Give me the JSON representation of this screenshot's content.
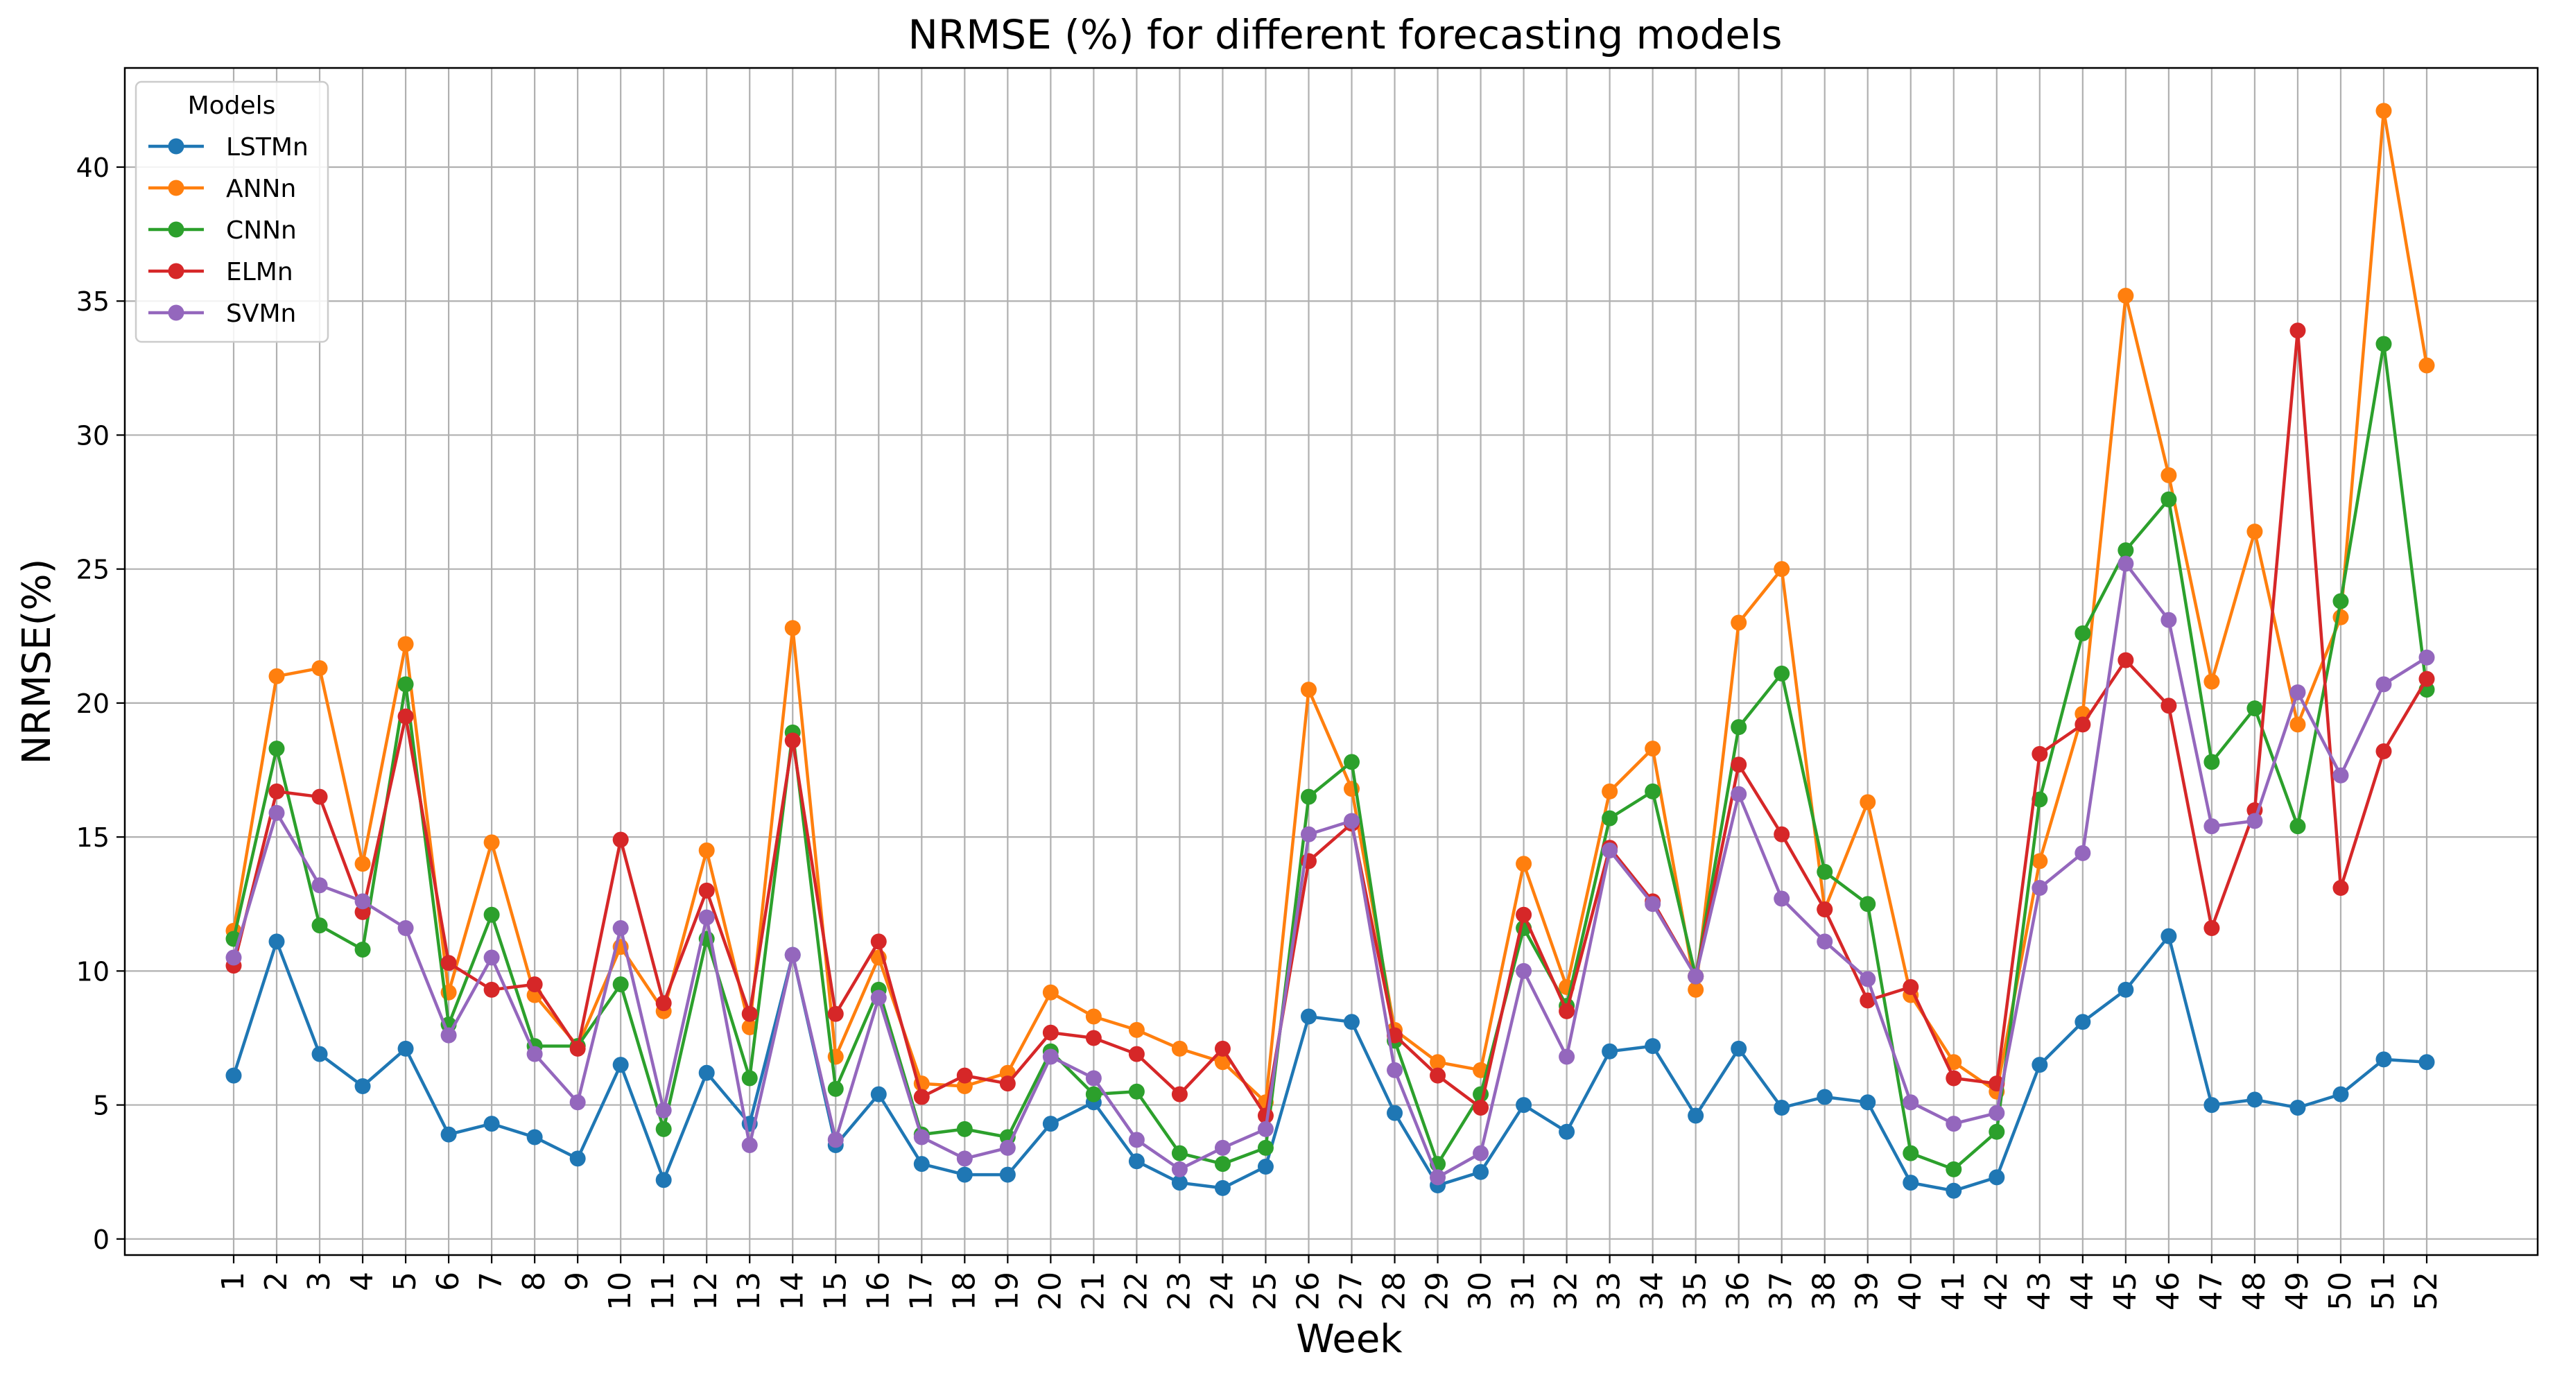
{
  "chart_data": {
    "type": "line",
    "title": "NRMSE (%) for different forecasting models",
    "xlabel": "Week",
    "ylabel": "NRMSE(%)",
    "ylim": [
      -0.6,
      43.7
    ],
    "yticks": [
      0,
      5,
      10,
      15,
      20,
      25,
      30,
      35,
      40
    ],
    "grid": true,
    "legend": {
      "title": "Models",
      "placement": "top-left"
    },
    "categories": [
      "1",
      "2",
      "3",
      "4",
      "5",
      "6",
      "7",
      "8",
      "9",
      "10",
      "11",
      "12",
      "13",
      "14",
      "15",
      "16",
      "17",
      "18",
      "19",
      "20",
      "21",
      "22",
      "23",
      "24",
      "25",
      "26",
      "27",
      "28",
      "29",
      "30",
      "31",
      "32",
      "33",
      "34",
      "35",
      "36",
      "37",
      "38",
      "39",
      "40",
      "41",
      "42",
      "43",
      "44",
      "45",
      "46",
      "47",
      "48",
      "49",
      "50",
      "51",
      "52"
    ],
    "series": [
      {
        "name": "LSTMn",
        "color": "#1f77b4",
        "values": [
          6.1,
          11.1,
          6.9,
          5.7,
          7.1,
          3.9,
          4.3,
          3.8,
          3.0,
          6.5,
          2.2,
          6.2,
          4.3,
          10.6,
          3.5,
          5.4,
          2.8,
          2.4,
          2.4,
          4.3,
          5.1,
          2.9,
          2.1,
          1.9,
          2.7,
          8.3,
          8.1,
          4.7,
          2.0,
          2.5,
          5.0,
          4.0,
          7.0,
          7.2,
          4.6,
          7.1,
          4.9,
          5.3,
          5.1,
          2.1,
          1.8,
          2.3,
          6.5,
          8.1,
          9.3,
          11.3,
          5.0,
          5.2,
          4.9,
          5.4,
          6.7,
          6.6
        ]
      },
      {
        "name": "ANNn",
        "color": "#ff7f0e",
        "values": [
          11.5,
          21.0,
          21.3,
          14.0,
          22.2,
          9.2,
          14.8,
          9.1,
          7.2,
          10.9,
          8.5,
          14.5,
          7.9,
          22.8,
          6.8,
          10.5,
          5.8,
          5.7,
          6.2,
          9.2,
          8.3,
          7.8,
          7.1,
          6.6,
          5.1,
          20.5,
          16.8,
          7.8,
          6.6,
          6.3,
          14.0,
          9.4,
          16.7,
          18.3,
          9.3,
          23.0,
          25.0,
          12.3,
          16.3,
          9.1,
          6.6,
          5.5,
          14.1,
          19.6,
          35.2,
          28.5,
          20.8,
          26.4,
          19.2,
          23.2,
          42.1,
          32.6
        ]
      },
      {
        "name": "CNNn",
        "color": "#2ca02c",
        "values": [
          11.2,
          18.3,
          11.7,
          10.8,
          20.7,
          8.0,
          12.1,
          7.2,
          7.2,
          9.5,
          4.1,
          11.2,
          6.0,
          18.9,
          5.6,
          9.3,
          3.9,
          4.1,
          3.8,
          7.0,
          5.4,
          5.5,
          3.2,
          2.8,
          3.4,
          16.5,
          17.8,
          7.4,
          2.8,
          5.4,
          11.6,
          8.7,
          15.7,
          16.7,
          9.8,
          19.1,
          21.1,
          13.7,
          12.5,
          3.2,
          2.6,
          4.0,
          16.4,
          22.6,
          25.7,
          27.6,
          17.8,
          19.8,
          15.4,
          23.8,
          33.4,
          20.5
        ]
      },
      {
        "name": "ELMn",
        "color": "#d62728",
        "values": [
          10.2,
          16.7,
          16.5,
          12.2,
          19.5,
          10.3,
          9.3,
          9.5,
          7.1,
          14.9,
          8.8,
          13.0,
          8.4,
          18.6,
          8.4,
          11.1,
          5.3,
          6.1,
          5.8,
          7.7,
          7.5,
          6.9,
          5.4,
          7.1,
          4.6,
          14.1,
          15.5,
          7.6,
          6.1,
          4.9,
          12.1,
          8.5,
          14.6,
          12.6,
          9.8,
          17.7,
          15.1,
          12.3,
          8.9,
          9.4,
          6.0,
          5.8,
          18.1,
          19.2,
          21.6,
          19.9,
          11.6,
          16.0,
          33.9,
          13.1,
          18.2,
          20.9
        ]
      },
      {
        "name": "SVMn",
        "color": "#9467bd",
        "values": [
          10.5,
          15.9,
          13.2,
          12.6,
          11.6,
          7.6,
          10.5,
          6.9,
          5.1,
          11.6,
          4.8,
          12.0,
          3.5,
          10.6,
          3.7,
          9.0,
          3.8,
          3.0,
          3.4,
          6.8,
          6.0,
          3.7,
          2.6,
          3.4,
          4.1,
          15.1,
          15.6,
          6.3,
          2.3,
          3.2,
          10.0,
          6.8,
          14.5,
          12.5,
          9.8,
          16.6,
          12.7,
          11.1,
          9.7,
          5.1,
          4.3,
          4.7,
          13.1,
          14.4,
          25.2,
          23.1,
          15.4,
          15.6,
          20.4,
          17.3,
          20.7,
          21.7
        ]
      }
    ]
  }
}
